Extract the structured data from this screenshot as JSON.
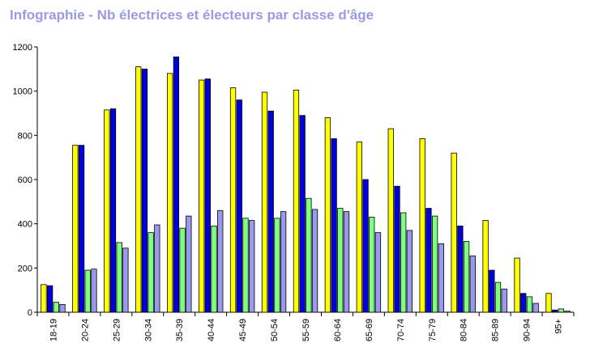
{
  "chart_data": {
    "type": "bar",
    "title": "Infographie - Nb électrices et électeurs par classe d'âge",
    "xlabel": "",
    "ylabel": "",
    "ylim": [
      0,
      1200
    ],
    "yticks": [
      0,
      200,
      400,
      600,
      800,
      1000,
      1200
    ],
    "grid": false,
    "legend": "none",
    "categories": [
      "18-19",
      "20-24",
      "25-29",
      "30-34",
      "35-39",
      "40-44",
      "45-49",
      "50-54",
      "55-59",
      "60-64",
      "65-69",
      "70-74",
      "75-79",
      "80-84",
      "85-89",
      "90-94",
      "95+"
    ],
    "series": [
      {
        "color": "#ffff00",
        "values": [
          125,
          755,
          915,
          1110,
          1080,
          1050,
          1015,
          995,
          1005,
          880,
          770,
          830,
          785,
          720,
          415,
          245,
          85
        ]
      },
      {
        "color": "#0000dd",
        "values": [
          120,
          755,
          920,
          1100,
          1155,
          1055,
          960,
          910,
          890,
          785,
          600,
          570,
          470,
          390,
          190,
          85,
          10
        ]
      },
      {
        "color": "#7fff7f",
        "values": [
          45,
          190,
          315,
          360,
          380,
          390,
          425,
          425,
          515,
          470,
          430,
          450,
          435,
          320,
          135,
          70,
          15
        ]
      },
      {
        "color": "#9999ee",
        "values": [
          35,
          195,
          290,
          395,
          435,
          460,
          415,
          455,
          465,
          455,
          360,
          370,
          310,
          255,
          105,
          40,
          5
        ]
      }
    ]
  }
}
